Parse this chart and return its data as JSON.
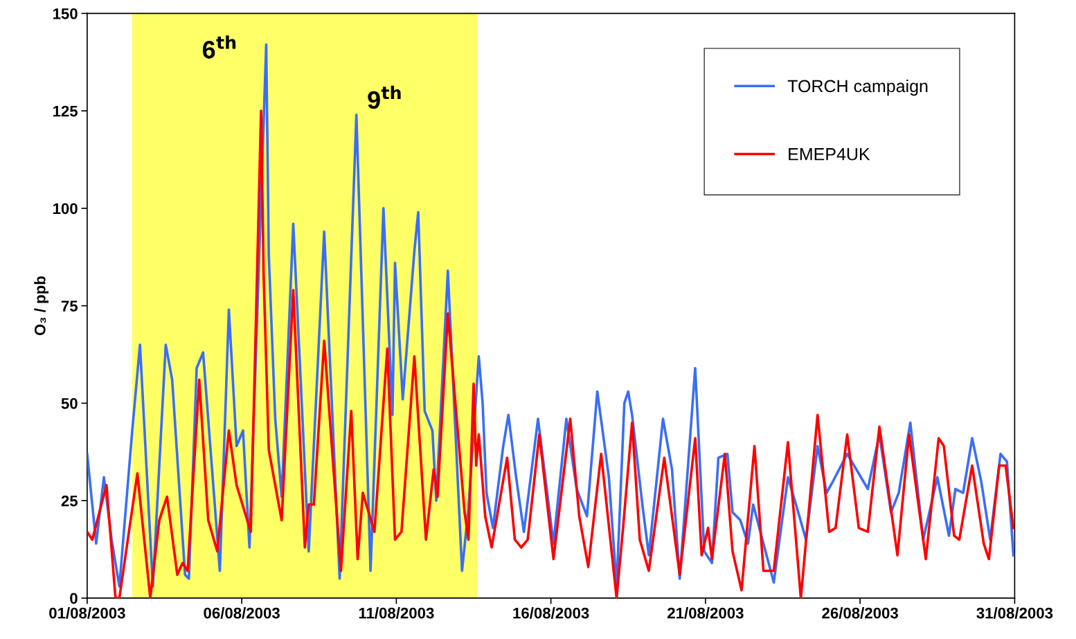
{
  "chart_data": {
    "type": "line",
    "ylabel": "O₃ / ppb",
    "xlim": [
      "2003-08-01",
      "2003-08-31"
    ],
    "xticks": [
      {
        "value": "2003-08-01",
        "label": "01/08/2003"
      },
      {
        "value": "2003-08-06",
        "label": "06/08/2003"
      },
      {
        "value": "2003-08-11",
        "label": "11/08/2003"
      },
      {
        "value": "2003-08-16",
        "label": "16/08/2003"
      },
      {
        "value": "2003-08-21",
        "label": "21/08/2003"
      },
      {
        "value": "2003-08-26",
        "label": "26/08/2003"
      },
      {
        "value": "2003-08-31",
        "label": "31/08/2003"
      }
    ],
    "ylim": [
      0,
      150
    ],
    "yticks": [
      0,
      25,
      50,
      75,
      100,
      125,
      150
    ],
    "grid": false,
    "legend": "top right",
    "line_style": "solid",
    "marker": "none",
    "bands": [
      {
        "axis": "x",
        "from": "2003-08-02T11:00",
        "to": "2003-08-13T15:00",
        "color": "#ffff66"
      }
    ],
    "annotations": [
      "6$^{th}$",
      "9$^{th}$"
    ],
    "series": [
      {
        "name": "TORCH campaign",
        "color": "#3b6ef5",
        "x": [
          "2003-08-01T00:00",
          "2003-08-01T07:00",
          "2003-08-01T13:00",
          "2003-08-01T19:00",
          "2003-08-02T01:00",
          "2003-08-02T11:00",
          "2003-08-02T17:00",
          "2003-08-03T03:00",
          "2003-08-03T13:00",
          "2003-08-03T18:00",
          "2003-08-04T04:00",
          "2003-08-04T07:00",
          "2003-08-04T13:00",
          "2003-08-04T18:00",
          "2003-08-05T07:00",
          "2003-08-05T14:00",
          "2003-08-05T20:00",
          "2003-08-06T01:00",
          "2003-08-06T06:00",
          "2003-08-06T19:00",
          "2003-08-06T21:00",
          "2003-08-07T02:00",
          "2003-08-07T07:00",
          "2003-08-07T16:00",
          "2003-08-08T04:00",
          "2003-08-08T16:00",
          "2003-08-09T04:00",
          "2003-08-09T17:00",
          "2003-08-10T04:00",
          "2003-08-10T14:00",
          "2003-08-10T21:00",
          "2003-08-10T23:00",
          "2003-08-11T05:00",
          "2003-08-11T14:00",
          "2003-08-11T17:00",
          "2003-08-11T22:00",
          "2003-08-12T04:00",
          "2003-08-12T07:00",
          "2003-08-12T16:00",
          "2003-08-13T03:00",
          "2003-08-13T08:00",
          "2003-08-13T16:00",
          "2003-08-13T19:00",
          "2003-08-13T22:00",
          "2003-08-14T03:00",
          "2003-08-14T11:00",
          "2003-08-14T15:00",
          "2003-08-14T21:00",
          "2003-08-15T03:00",
          "2003-08-15T14:00",
          "2003-08-16T02:00",
          "2003-08-16T12:00",
          "2003-08-16T20:00",
          "2003-08-17T04:00",
          "2003-08-17T12:00",
          "2003-08-17T21:00",
          "2003-08-18T03:00",
          "2003-08-18T09:00",
          "2003-08-18T12:00",
          "2003-08-18T15:00",
          "2003-08-18T23:00",
          "2003-08-19T04:00",
          "2003-08-19T15:00",
          "2003-08-19T22:00",
          "2003-08-20T04:00",
          "2003-08-20T16:00",
          "2003-08-20T23:00",
          "2003-08-21T05:00",
          "2003-08-21T10:00",
          "2003-08-21T17:00",
          "2003-08-21T21:00",
          "2003-08-22T03:00",
          "2003-08-22T09:00",
          "2003-08-22T13:00",
          "2003-08-23T05:00",
          "2003-08-23T16:00",
          "2003-08-24T00:00",
          "2003-08-24T06:00",
          "2003-08-24T15:00",
          "2003-08-24T22:00",
          "2003-08-25T03:00",
          "2003-08-25T14:00",
          "2003-08-26T06:00",
          "2003-08-26T15:00",
          "2003-08-27T00:00",
          "2003-08-27T06:00",
          "2003-08-27T15:00",
          "2003-08-28T01:00",
          "2003-08-28T12:00",
          "2003-08-28T21:00",
          "2003-08-29T02:00",
          "2003-08-29T08:00",
          "2003-08-29T15:00",
          "2003-08-29T22:00",
          "2003-08-30T05:00",
          "2003-08-30T13:00",
          "2003-08-30T18:00",
          "2003-08-30T23:00"
        ],
        "values": [
          37,
          14,
          31,
          15,
          3,
          43,
          65,
          3,
          65,
          56,
          6,
          5,
          59,
          63,
          7,
          74,
          39,
          43,
          13,
          142,
          88,
          46,
          26,
          96,
          12,
          94,
          5,
          124,
          7,
          100,
          47,
          86,
          51,
          89,
          99,
          48,
          43,
          25,
          84,
          7,
          23,
          62,
          50,
          27,
          18,
          39,
          47,
          31,
          17,
          46,
          14,
          46,
          28,
          21,
          53,
          31,
          3,
          50,
          53,
          47,
          24,
          11,
          46,
          33,
          5,
          59,
          12,
          9,
          36,
          37,
          22,
          20,
          14,
          24,
          4,
          31,
          22,
          15,
          39,
          27,
          30,
          37,
          28,
          42,
          22,
          27,
          45,
          15,
          31,
          16,
          28,
          27,
          41,
          30,
          15,
          37,
          35,
          11
        ]
      },
      {
        "name": "EMEP4UK",
        "color": "#ff0000",
        "x": [
          "2003-08-01T00:00",
          "2003-08-01T04:00",
          "2003-08-01T15:00",
          "2003-08-01T22:00",
          "2003-08-02T01:00",
          "2003-08-02T15:00",
          "2003-08-03T01:00",
          "2003-08-03T08:00",
          "2003-08-03T14:00",
          "2003-08-03T22:00",
          "2003-08-04T02:00",
          "2003-08-04T06:00",
          "2003-08-04T15:00",
          "2003-08-04T22:00",
          "2003-08-05T05:00",
          "2003-08-05T14:00",
          "2003-08-05T20:00",
          "2003-08-06T07:00",
          "2003-08-06T15:00",
          "2003-08-06T17:00",
          "2003-08-06T21:00",
          "2003-08-07T07:00",
          "2003-08-07T16:00",
          "2003-08-08T01:00",
          "2003-08-08T04:00",
          "2003-08-08T08:00",
          "2003-08-08T16:00",
          "2003-08-09T05:00",
          "2003-08-09T13:00",
          "2003-08-09T18:00",
          "2003-08-09T22:00",
          "2003-08-10T07:00",
          "2003-08-10T17:00",
          "2003-08-10T23:00",
          "2003-08-11T04:00",
          "2003-08-11T14:00",
          "2003-08-11T23:00",
          "2003-08-12T05:00",
          "2003-08-12T08:00",
          "2003-08-12T16:00",
          "2003-08-13T05:00",
          "2003-08-13T08:00",
          "2003-08-13T12:00",
          "2003-08-13T14:00",
          "2003-08-13T16:00",
          "2003-08-13T21:00",
          "2003-08-14T02:00",
          "2003-08-14T14:00",
          "2003-08-14T20:00",
          "2003-08-15T01:00",
          "2003-08-15T06:00",
          "2003-08-15T15:00",
          "2003-08-16T02:00",
          "2003-08-16T15:00",
          "2003-08-16T22:00",
          "2003-08-17T05:00",
          "2003-08-17T15:00",
          "2003-08-18T03:00",
          "2003-08-18T08:00",
          "2003-08-18T15:00",
          "2003-08-18T21:00",
          "2003-08-19T04:00",
          "2003-08-19T16:00",
          "2003-08-20T04:00",
          "2003-08-20T16:00",
          "2003-08-20T21:00",
          "2003-08-21T02:00",
          "2003-08-21T05:00",
          "2003-08-21T15:00",
          "2003-08-21T21:00",
          "2003-08-22T04:00",
          "2003-08-22T14:00",
          "2003-08-22T21:00",
          "2003-08-23T05:00",
          "2003-08-23T16:00",
          "2003-08-24T02:00",
          "2003-08-24T15:00",
          "2003-08-25T00:00",
          "2003-08-25T05:00",
          "2003-08-25T14:00",
          "2003-08-25T23:00",
          "2003-08-26T06:00",
          "2003-08-26T15:00",
          "2003-08-27T05:00",
          "2003-08-27T14:00",
          "2003-08-28T03:00",
          "2003-08-28T13:00",
          "2003-08-28T17:00",
          "2003-08-29T01:00",
          "2003-08-29T05:00",
          "2003-08-29T15:00",
          "2003-08-30T00:00",
          "2003-08-30T04:00",
          "2003-08-30T12:00",
          "2003-08-30T17:00",
          "2003-08-30T23:00"
        ],
        "values": [
          17,
          15,
          29,
          0,
          0,
          32,
          0,
          20,
          26,
          6,
          9,
          7,
          56,
          20,
          12,
          43,
          29,
          17,
          125,
          83,
          38,
          20,
          79,
          13,
          24,
          24,
          66,
          7,
          48,
          10,
          27,
          17,
          64,
          15,
          17,
          62,
          15,
          33,
          26,
          73,
          22,
          15,
          55,
          34,
          42,
          21,
          13,
          36,
          15,
          13,
          15,
          42,
          10,
          46,
          21,
          8,
          37,
          0,
          18,
          45,
          15,
          7,
          36,
          6,
          41,
          11,
          18,
          10,
          37,
          12,
          2,
          39,
          7,
          7,
          40,
          0,
          47,
          17,
          18,
          42,
          18,
          17,
          44,
          11,
          42,
          10,
          41,
          39,
          16,
          15,
          34,
          14,
          10,
          34,
          34,
          18
        ]
      }
    ]
  }
}
